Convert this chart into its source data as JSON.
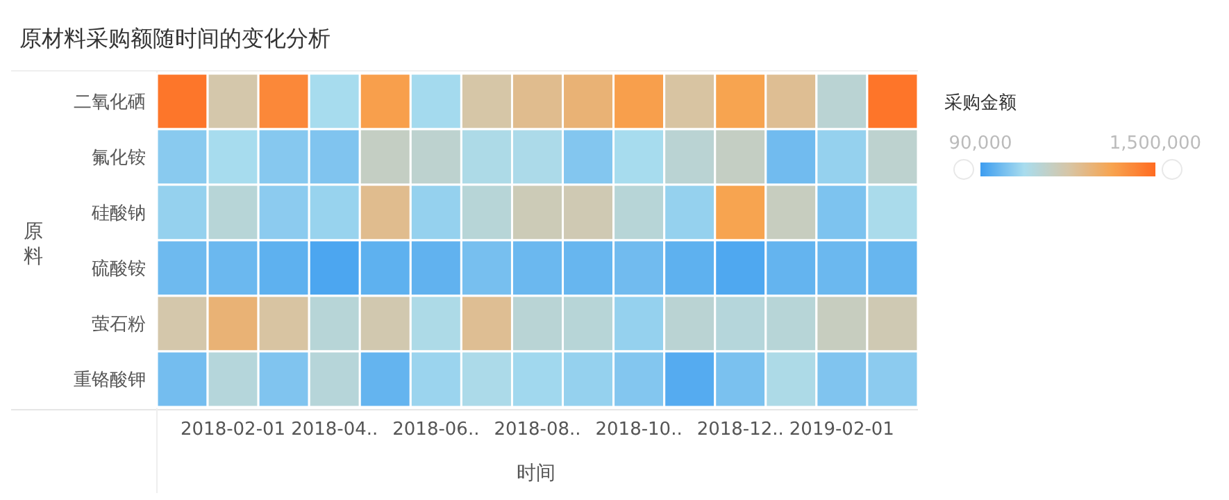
{
  "chart_data": {
    "type": "heatmap",
    "title": "原材料采购额随时间的变化分析",
    "xlabel": "时间",
    "ylabel": "原料",
    "clabel": "采购金额",
    "categories": [
      null,
      "2018-02-01",
      null,
      "2018-04..",
      null,
      "2018-06..",
      null,
      "2018-08..",
      null,
      "2018-10..",
      null,
      "2018-12..",
      null,
      "2019-02-01",
      null
    ],
    "y_categories": [
      "二氧化硒",
      "氟化铵",
      "硅酸钠",
      "硫酸铵",
      "萤石粉",
      "重铬酸钾"
    ],
    "cells": [
      [
        1430000,
        780000,
        1320000,
        440000,
        1180000,
        430000,
        800000,
        900000,
        1000000,
        1180000,
        820000,
        1150000,
        880000,
        580000,
        1440000
      ],
      [
        340000,
        440000,
        330000,
        310000,
        660000,
        600000,
        480000,
        470000,
        320000,
        440000,
        580000,
        660000,
        260000,
        380000,
        600000
      ],
      [
        380000,
        560000,
        350000,
        390000,
        900000,
        380000,
        560000,
        720000,
        740000,
        560000,
        380000,
        1150000,
        680000,
        300000,
        460000
      ],
      [
        250000,
        240000,
        200000,
        140000,
        200000,
        210000,
        280000,
        240000,
        230000,
        260000,
        200000,
        150000,
        220000,
        240000,
        230000
      ],
      [
        780000,
        1000000,
        820000,
        560000,
        760000,
        480000,
        880000,
        570000,
        560000,
        380000,
        580000,
        540000,
        560000,
        680000,
        740000
      ],
      [
        270000,
        540000,
        310000,
        550000,
        220000,
        400000,
        470000,
        420000,
        380000,
        320000,
        170000,
        290000,
        480000,
        310000,
        350000
      ]
    ],
    "clim": [
      90000,
      1500000
    ],
    "cticks": [
      {
        "value": 90000,
        "label": "90,000"
      },
      {
        "value": 1500000,
        "label": "1,500,000"
      }
    ],
    "colors": [
      "#3d9df0",
      "#a8dcee",
      "#d6c6a8",
      "#f7a450",
      "#ff6b21"
    ]
  }
}
